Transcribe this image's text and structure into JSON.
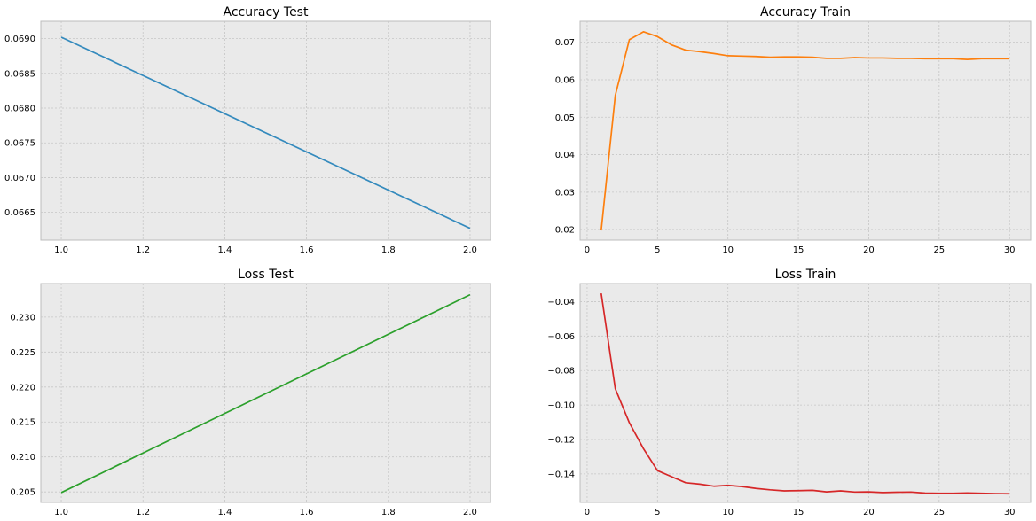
{
  "chart_data": [
    {
      "id": "acc-test",
      "type": "line",
      "title": "Accuracy Test",
      "xlabel": "",
      "ylabel": "",
      "grid": true,
      "xlim": [
        0.95,
        2.05
      ],
      "ylim": [
        0.0661,
        0.06925
      ],
      "xticks": [
        1.0,
        1.2,
        1.4,
        1.6,
        1.8,
        2.0
      ],
      "xtick_labels": [
        "1.0",
        "1.2",
        "1.4",
        "1.6",
        "1.8",
        "2.0"
      ],
      "yticks": [
        0.0665,
        0.067,
        0.0675,
        0.068,
        0.0685,
        0.069
      ],
      "ytick_labels": [
        "0.0665",
        "0.0670",
        "0.0675",
        "0.0680",
        "0.0685",
        "0.0690"
      ],
      "series": [
        {
          "color": "#348abd",
          "x": [
            1,
            2
          ],
          "y": [
            0.06902,
            0.06627
          ]
        }
      ]
    },
    {
      "id": "acc-train",
      "type": "line",
      "title": "Accuracy Train",
      "xlabel": "",
      "ylabel": "",
      "grid": true,
      "xlim": [
        -0.5,
        31.5
      ],
      "ylim": [
        0.0172,
        0.0756
      ],
      "xticks": [
        0,
        5,
        10,
        15,
        20,
        25,
        30
      ],
      "xtick_labels": [
        "0",
        "5",
        "10",
        "15",
        "20",
        "25",
        "30"
      ],
      "yticks": [
        0.02,
        0.03,
        0.04,
        0.05,
        0.06,
        0.07
      ],
      "ytick_labels": [
        "0.02",
        "0.03",
        "0.04",
        "0.05",
        "0.06",
        "0.07"
      ],
      "series": [
        {
          "color": "#fd7f0e",
          "x": [
            1,
            2,
            3,
            4,
            5,
            6,
            7,
            8,
            9,
            10,
            11,
            12,
            13,
            14,
            15,
            16,
            17,
            18,
            19,
            20,
            21,
            22,
            23,
            24,
            25,
            26,
            27,
            28,
            29,
            30
          ],
          "y": [
            0.0198,
            0.0558,
            0.0707,
            0.0728,
            0.0715,
            0.0693,
            0.0679,
            0.0675,
            0.067,
            0.0664,
            0.0663,
            0.0662,
            0.066,
            0.0661,
            0.0661,
            0.066,
            0.0657,
            0.0657,
            0.0659,
            0.0658,
            0.0658,
            0.0657,
            0.0657,
            0.0656,
            0.0656,
            0.0656,
            0.0654,
            0.0656,
            0.0656,
            0.0656
          ]
        }
      ]
    },
    {
      "id": "loss-test",
      "type": "line",
      "title": "Loss Test",
      "xlabel": "",
      "ylabel": "",
      "grid": true,
      "xlim": [
        0.95,
        2.05
      ],
      "ylim": [
        0.2035,
        0.2348
      ],
      "xticks": [
        1.0,
        1.2,
        1.4,
        1.6,
        1.8,
        2.0
      ],
      "xtick_labels": [
        "1.0",
        "1.2",
        "1.4",
        "1.6",
        "1.8",
        "2.0"
      ],
      "yticks": [
        0.205,
        0.21,
        0.215,
        0.22,
        0.225,
        0.23
      ],
      "ytick_labels": [
        "0.205",
        "0.210",
        "0.215",
        "0.220",
        "0.225",
        "0.230"
      ],
      "series": [
        {
          "color": "#2ca02c",
          "x": [
            1,
            2
          ],
          "y": [
            0.2049,
            0.2332
          ]
        }
      ]
    },
    {
      "id": "loss-train",
      "type": "line",
      "title": "Loss Train",
      "xlabel": "",
      "ylabel": "",
      "grid": true,
      "xlim": [
        -0.5,
        31.5
      ],
      "ylim": [
        -0.1565,
        -0.0295
      ],
      "xticks": [
        0,
        5,
        10,
        15,
        20,
        25,
        30
      ],
      "xtick_labels": [
        "0",
        "5",
        "10",
        "15",
        "20",
        "25",
        "30"
      ],
      "yticks": [
        -0.14,
        -0.12,
        -0.1,
        -0.08,
        -0.06,
        -0.04
      ],
      "ytick_labels": [
        "−0.14",
        "−0.12",
        "−0.10",
        "−0.08",
        "−0.06",
        "−0.04"
      ],
      "series": [
        {
          "color": "#d62728",
          "x": [
            1,
            2,
            3,
            4,
            5,
            6,
            7,
            8,
            9,
            10,
            11,
            12,
            13,
            14,
            15,
            16,
            17,
            18,
            19,
            20,
            21,
            22,
            23,
            24,
            25,
            26,
            27,
            28,
            29,
            30
          ],
          "y": [
            -0.0352,
            -0.0905,
            -0.1103,
            -0.1253,
            -0.1381,
            -0.1416,
            -0.1451,
            -0.1459,
            -0.1471,
            -0.1466,
            -0.1473,
            -0.1484,
            -0.1492,
            -0.1498,
            -0.1497,
            -0.1495,
            -0.1504,
            -0.1498,
            -0.1505,
            -0.1504,
            -0.1508,
            -0.1506,
            -0.1505,
            -0.1511,
            -0.1512,
            -0.1512,
            -0.151,
            -0.1512,
            -0.1514,
            -0.1515
          ]
        }
      ]
    }
  ]
}
